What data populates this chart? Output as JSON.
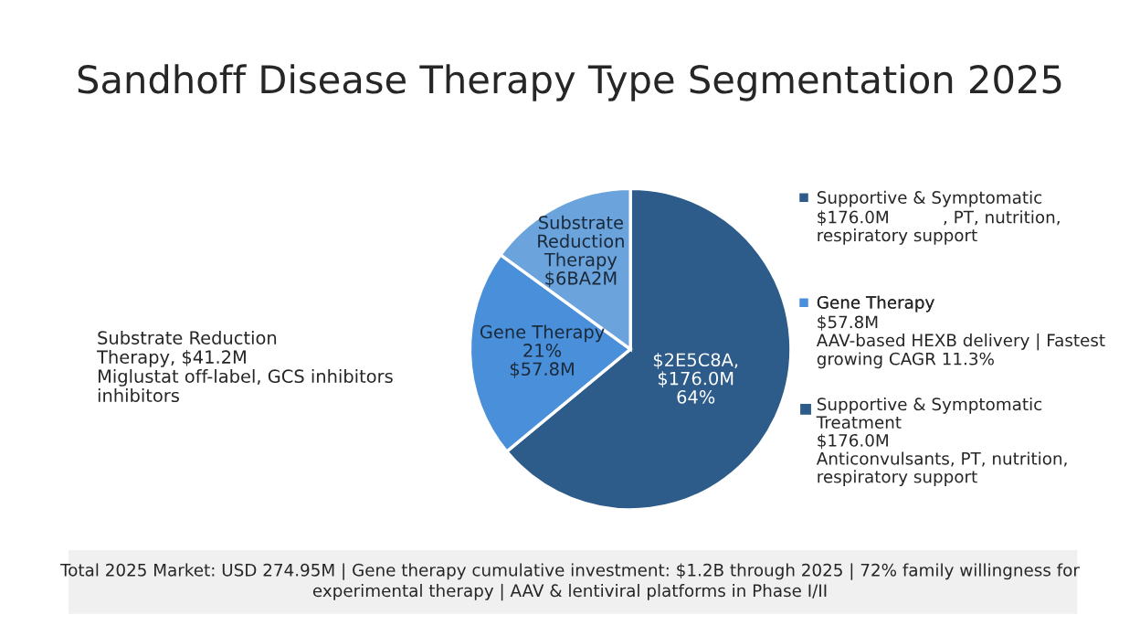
{
  "chart_data": {
    "type": "pie",
    "title": "Sandhoff Disease Therapy Type Segmentation 2025",
    "categories": [
      "Supportive & Symptomatic",
      "Gene Therapy",
      "Substrate Reduction Therapy"
    ],
    "values": [
      64,
      21,
      15
    ],
    "colors": [
      "#2e5c8a",
      "#4a8fd9",
      "#6ba3dc"
    ],
    "legend": "right",
    "annotations": [
      "Substrate Reduction\nTherapy, $41.2M\nMiglustat off-label, GCS inhibitors\ninhibitors",
      "$176.0M          , PT, nutrition,\nrespiratory support",
      "$57.8M\nAAV-based HEXB delivery | Fastest\ngrowing CAGR 11.3%",
      "Supportive & Symptomatic\nTreatment\n$176.0M\nAnticonvulsants, PT, nutrition,\nrespiratory support",
      "$2E5C8A,\n$176.0M\n64%",
      "21%\n$57.8M",
      "$6BA2M",
      "Total 2025 Market: USD 274.95M | Gene therapy cumulative investment: $1.2B through 2025 | 72% family willingness for\nexperimental therapy | AAV & lentiviral platforms in Phase I/II"
    ]
  }
}
